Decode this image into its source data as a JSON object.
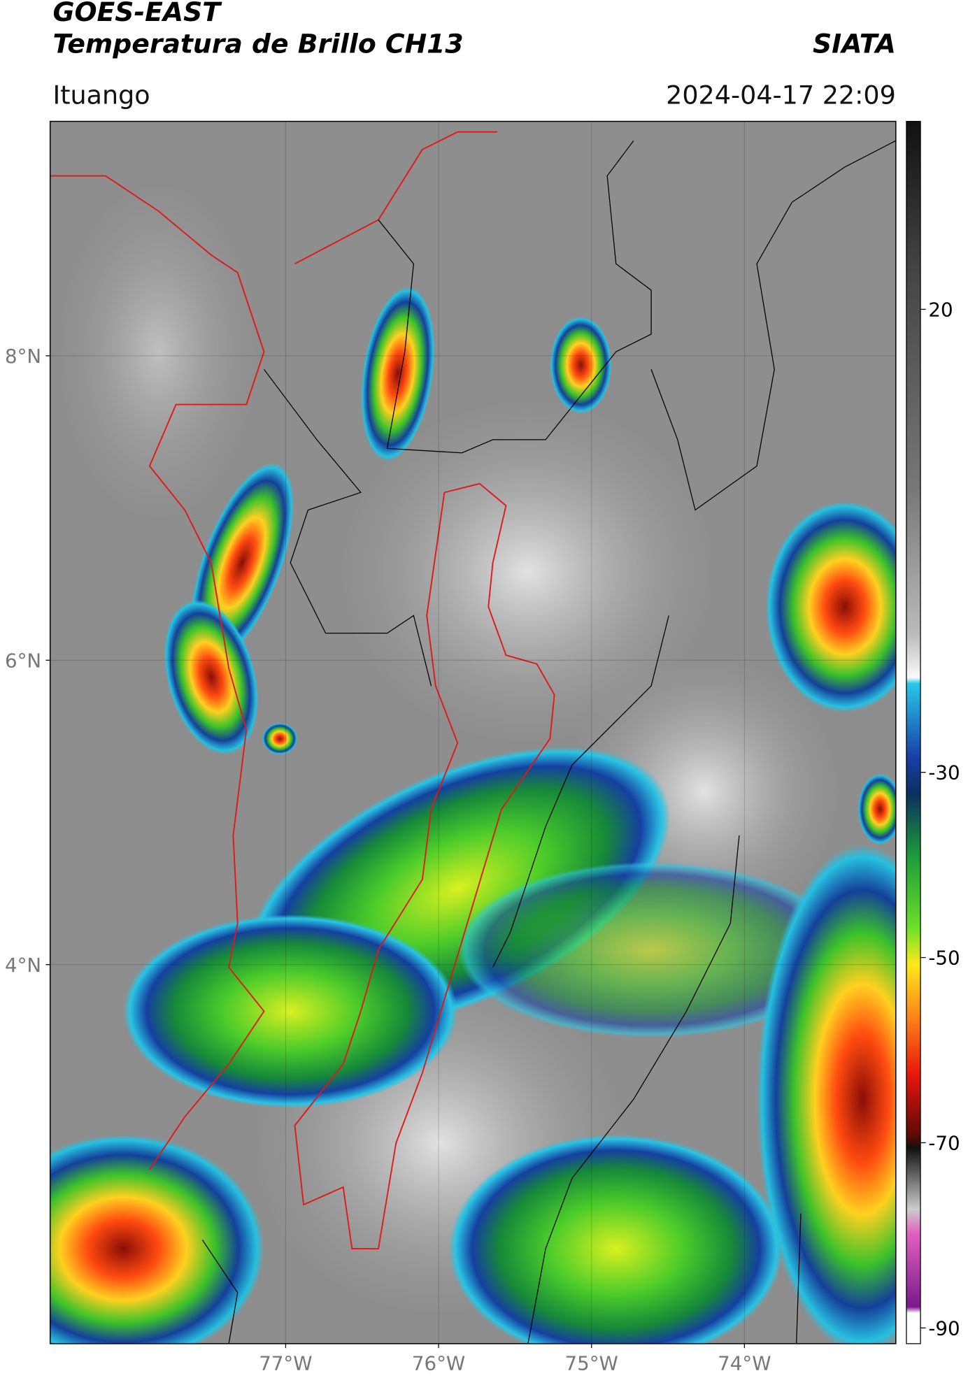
{
  "header": {
    "title": "GOES-EAST",
    "subtitle": "Temperatura de Brillo CH13",
    "source": "SIATA",
    "region": "Ituango",
    "timestamp": "2024-04-17 22:09"
  },
  "map": {
    "lon_range": [
      -78.54,
      -73.01
    ],
    "lat_range": [
      1.51,
      9.54
    ],
    "lon_ticks": [
      {
        "value": -77,
        "label": "77°W"
      },
      {
        "value": -76,
        "label": "76°W"
      },
      {
        "value": -75,
        "label": "75°W"
      },
      {
        "value": -74,
        "label": "74°W"
      }
    ],
    "lat_ticks": [
      {
        "value": 8,
        "label": "8°N"
      },
      {
        "value": 6,
        "label": "6°N"
      },
      {
        "value": 4,
        "label": "4°N"
      }
    ],
    "grid": true
  },
  "colorbar": {
    "range": [
      -91.7,
      40.3
    ],
    "ticks": [
      20,
      -30,
      -50,
      -70,
      -90
    ]
  }
}
